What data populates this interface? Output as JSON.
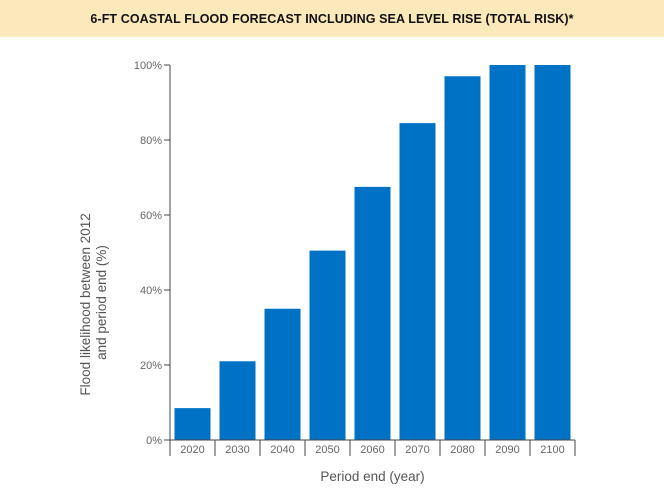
{
  "chart_data": {
    "type": "bar",
    "title": "6-FT COASTAL FLOOD FORECAST INCLUDING SEA LEVEL RISE (TOTAL RISK)*",
    "xlabel": "Period end (year)",
    "ylabel_lines": [
      "Flood likelihood between 2012",
      "and period end (%)"
    ],
    "categories": [
      "2020",
      "2030",
      "2040",
      "2050",
      "2060",
      "2070",
      "2080",
      "2090",
      "2100"
    ],
    "values": [
      8.5,
      21,
      35,
      50.5,
      67.5,
      84.5,
      97,
      100,
      100
    ],
    "ylim": [
      0,
      100
    ],
    "yticks": [
      0,
      20,
      40,
      60,
      80,
      100
    ],
    "ytick_labels": [
      "0%",
      "20%",
      "40%",
      "60%",
      "80%",
      "100%"
    ],
    "bar_color": "#0072c6",
    "grid": false
  },
  "header": {
    "background": "#fce9bb"
  }
}
